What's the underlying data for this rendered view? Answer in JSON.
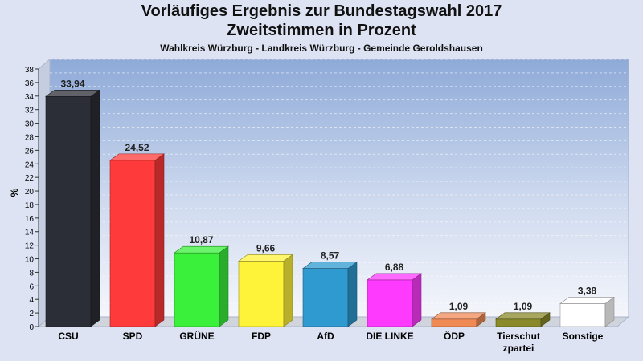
{
  "chart_data": {
    "type": "bar",
    "title": "Vorläufiges Ergebnis zur Bundestagswahl 2017",
    "subtitle": "Zweitstimmen in Prozent",
    "caption": "Wahlkreis Würzburg - Landkreis Würzburg - Gemeinde Geroldshausen",
    "xlabel": "",
    "ylabel": "%",
    "ylim": [
      0,
      38
    ],
    "ytick_step": 2,
    "grid": true,
    "legend": "none",
    "categories": [
      "CSU",
      "SPD",
      "GRÜNE",
      "FDP",
      "AfD",
      "DIE LINKE",
      "ÖDP",
      "Tierschutzpartei",
      "Sonstige"
    ],
    "category_label_lines": [
      [
        "CSU"
      ],
      [
        "SPD"
      ],
      [
        "GRÜNE"
      ],
      [
        "FDP"
      ],
      [
        "AfD"
      ],
      [
        "DIE LINKE"
      ],
      [
        "ÖDP"
      ],
      [
        "Tierschut",
        "zpartei"
      ],
      [
        "Sonstige"
      ]
    ],
    "values": [
      33.94,
      24.52,
      10.87,
      9.66,
      8.57,
      6.88,
      1.09,
      1.09,
      3.38
    ],
    "value_labels": [
      "33,94",
      "24,52",
      "10,87",
      "9,66",
      "8,57",
      "6,88",
      "1,09",
      "1,09",
      "3,38"
    ],
    "colors": [
      "#2b2e36",
      "#ff3a3a",
      "#3af03a",
      "#fff33a",
      "#2e9ad0",
      "#ff3aff",
      "#f08a55",
      "#8a8a2a",
      "#ffffff"
    ]
  }
}
